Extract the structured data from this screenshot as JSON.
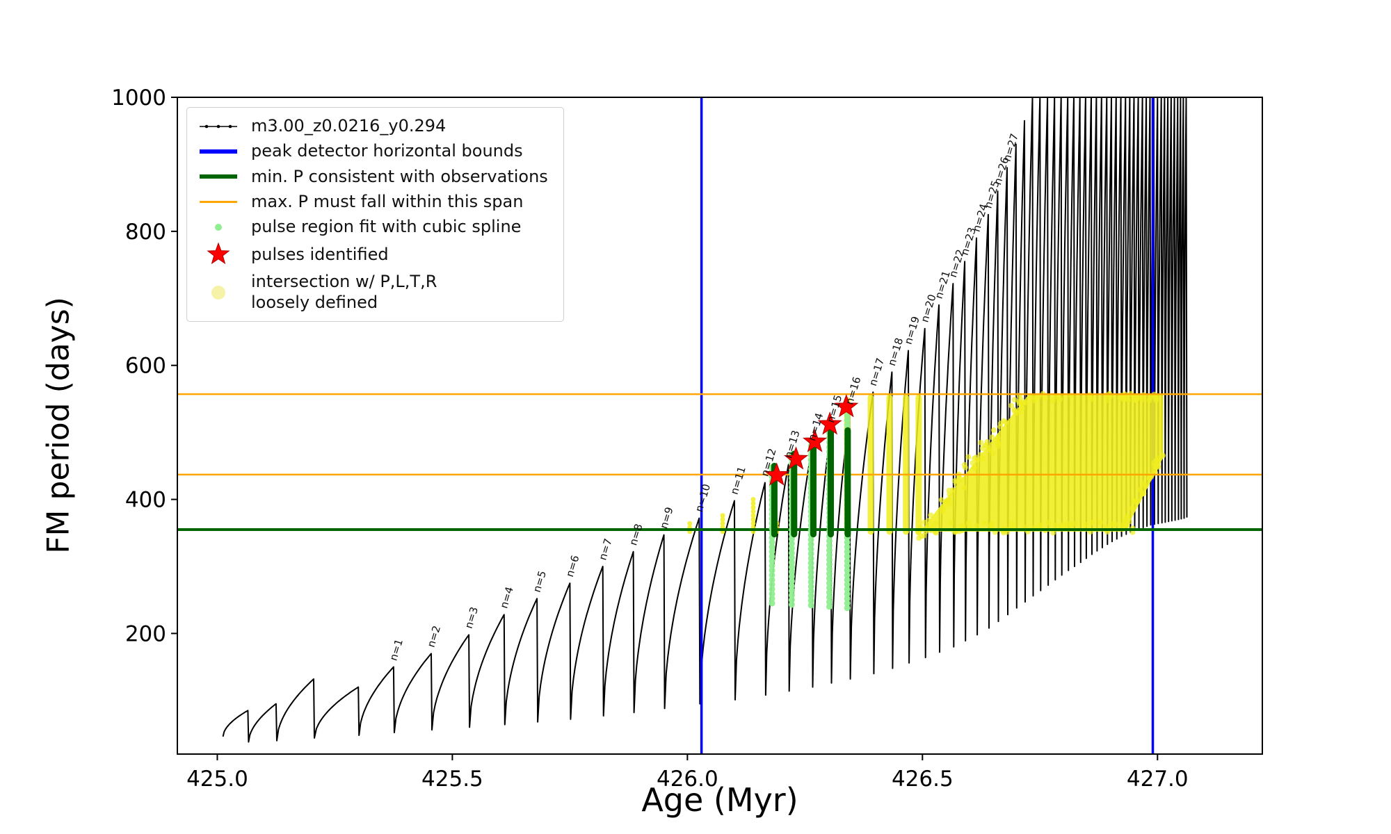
{
  "figure": {
    "background": "#ffffff"
  },
  "chart_data": {
    "type": "line",
    "title": "",
    "xlabel": "Age (Myr)",
    "ylabel": "FM period (days)",
    "xlim": [
      424.915,
      427.223
    ],
    "ylim": [
      20,
      1000
    ],
    "xticks": [
      {
        "v": 425.0,
        "label": "425.0"
      },
      {
        "v": 425.5,
        "label": "425.5"
      },
      {
        "v": 426.0,
        "label": "426.0"
      },
      {
        "v": 426.5,
        "label": "426.5"
      },
      {
        "v": 427.0,
        "label": "427.0"
      }
    ],
    "yticks": [
      {
        "v": 200,
        "label": "200"
      },
      {
        "v": 400,
        "label": "400"
      },
      {
        "v": 600,
        "label": "600"
      },
      {
        "v": 800,
        "label": "800"
      },
      {
        "v": 1000,
        "label": "1000"
      }
    ],
    "series": {
      "label": "m3.00_z0.0216_y0.294",
      "color": "#000000"
    },
    "peak_detector_bounds": {
      "label": "peak detector horizontal bounds",
      "color": "#0000ff",
      "x": [
        426.03,
        426.99
      ]
    },
    "min_p_line": {
      "label": "min. P consistent with observations",
      "color": "#006400",
      "y": 355
    },
    "max_p_span": {
      "label": "max. P must fall within this span",
      "color": "#ffa500",
      "y": [
        437,
        557
      ]
    },
    "pulse_region": {
      "label": "pulse region fit with cubic spline",
      "color": "#90ee90",
      "columns": [
        [
          426.18,
          245,
          448
        ],
        [
          426.222,
          243,
          468
        ],
        [
          426.263,
          242,
          488
        ],
        [
          426.302,
          240,
          510
        ],
        [
          426.34,
          238,
          530
        ]
      ]
    },
    "pulse_bars": {
      "color": "#006400",
      "bars": [
        [
          426.185,
          348,
          450
        ],
        [
          426.227,
          348,
          468
        ],
        [
          426.268,
          348,
          488
        ],
        [
          426.305,
          348,
          500
        ],
        [
          426.341,
          348,
          503
        ]
      ]
    },
    "pulses": {
      "label": "pulses identified",
      "color": "#ff0000",
      "points": [
        [
          426.19,
          436
        ],
        [
          426.231,
          460
        ],
        [
          426.271,
          486
        ],
        [
          426.303,
          512
        ],
        [
          426.338,
          538
        ]
      ]
    },
    "intersection": {
      "label": "intersection w/ P,L,T,R\nloosely defined",
      "color": "#f0ee20",
      "polygon": [
        [
          426.495,
          352
        ],
        [
          426.93,
          352
        ],
        [
          427.012,
          462
        ],
        [
          427.012,
          556
        ],
        [
          426.725,
          556
        ]
      ],
      "strips": [
        [
          426.34,
          352,
          548
        ],
        [
          426.39,
          352,
          552
        ],
        [
          426.43,
          352,
          552
        ],
        [
          426.465,
          352,
          552
        ],
        [
          426.492,
          352,
          552
        ]
      ],
      "flank_dots": [
        [
          426.005,
          352,
          366
        ],
        [
          426.075,
          352,
          380
        ],
        [
          426.14,
          352,
          402
        ],
        [
          426.19,
          352,
          368
        ]
      ]
    },
    "teeth_format": [
      "n_label_or_null",
      "x_peak_Myr",
      "peak_period_days",
      "period_after_drop_days"
    ],
    "teeth": [
      [
        null,
        425.065,
        85,
        38
      ],
      [
        null,
        425.125,
        95,
        40
      ],
      [
        null,
        425.205,
        132,
        44
      ],
      [
        null,
        425.3,
        120,
        48
      ],
      [
        1,
        425.375,
        150,
        52
      ],
      [
        2,
        425.455,
        170,
        56
      ],
      [
        3,
        425.535,
        198,
        60
      ],
      [
        4,
        425.61,
        228,
        64
      ],
      [
        5,
        425.68,
        252,
        68
      ],
      [
        6,
        425.75,
        275,
        72
      ],
      [
        7,
        425.82,
        300,
        77
      ],
      [
        8,
        425.885,
        322,
        82
      ],
      [
        9,
        425.95,
        347,
        88
      ],
      [
        10,
        426.025,
        372,
        95
      ],
      [
        11,
        426.1,
        398,
        101
      ],
      [
        12,
        426.165,
        425,
        108
      ],
      [
        13,
        426.215,
        452,
        114
      ],
      [
        14,
        426.265,
        478,
        120
      ],
      [
        15,
        426.305,
        505,
        126
      ],
      [
        16,
        426.345,
        532,
        132
      ],
      [
        17,
        426.395,
        560,
        140
      ],
      [
        18,
        426.435,
        590,
        148
      ],
      [
        19,
        426.47,
        622,
        156
      ],
      [
        20,
        426.505,
        655,
        164
      ],
      [
        21,
        426.535,
        690,
        172
      ],
      [
        22,
        426.565,
        722,
        180
      ],
      [
        23,
        426.59,
        755,
        189
      ],
      [
        24,
        426.615,
        790,
        198
      ],
      [
        25,
        426.64,
        825,
        208
      ],
      [
        26,
        426.66,
        860,
        218
      ],
      [
        27,
        426.68,
        895,
        228
      ],
      [
        null,
        426.699,
        930,
        238
      ],
      [
        null,
        426.717,
        965,
        247
      ],
      [
        null,
        426.734,
        1000,
        256
      ],
      [
        null,
        426.75,
        1000,
        264
      ],
      [
        null,
        426.766,
        1000,
        272
      ],
      [
        null,
        426.781,
        1000,
        280
      ],
      [
        null,
        426.795,
        1000,
        287
      ],
      [
        null,
        426.809,
        1000,
        294
      ],
      [
        null,
        426.822,
        1000,
        300
      ],
      [
        null,
        426.835,
        1000,
        306
      ],
      [
        null,
        426.847,
        1000,
        312
      ],
      [
        null,
        426.859,
        1000,
        318
      ],
      [
        null,
        426.87,
        1000,
        323
      ],
      [
        null,
        426.881,
        1000,
        328
      ],
      [
        null,
        426.892,
        1000,
        333
      ],
      [
        null,
        426.902,
        1000,
        337
      ],
      [
        null,
        426.912,
        1000,
        341
      ],
      [
        null,
        426.922,
        1000,
        345
      ],
      [
        null,
        426.932,
        1000,
        348
      ],
      [
        null,
        426.941,
        1000,
        351
      ],
      [
        null,
        426.95,
        1000,
        354
      ],
      [
        null,
        426.959,
        1000,
        356
      ],
      [
        null,
        426.968,
        1000,
        358
      ],
      [
        null,
        426.976,
        1000,
        360
      ],
      [
        null,
        426.984,
        1000,
        362
      ],
      [
        null,
        426.992,
        1000,
        363
      ],
      [
        null,
        427.0,
        1000,
        364
      ],
      [
        null,
        427.008,
        1000,
        365
      ],
      [
        null,
        427.015,
        1000,
        366
      ],
      [
        null,
        427.022,
        1000,
        367
      ],
      [
        null,
        427.029,
        1000,
        368
      ],
      [
        null,
        427.036,
        1000,
        369
      ],
      [
        null,
        427.043,
        1000,
        370
      ],
      [
        null,
        427.049,
        1000,
        371
      ],
      [
        null,
        427.055,
        1000,
        372
      ],
      [
        null,
        427.061,
        1000,
        373
      ]
    ]
  },
  "legend": {
    "items": [
      {
        "label": "m3.00_z0.0216_y0.294",
        "type": "line-dot",
        "color": "#000000"
      },
      {
        "label": "peak detector horizontal bounds",
        "type": "thick-line",
        "color": "#0000ff"
      },
      {
        "label": "min. P consistent with observations",
        "type": "thick-line",
        "color": "#006400"
      },
      {
        "label": "max. P must fall within this span",
        "type": "line",
        "color": "#ffa500"
      },
      {
        "label": "pulse region fit with cubic spline",
        "type": "dot",
        "color": "#90ee90"
      },
      {
        "label": "pulses identified",
        "type": "star",
        "color": "#ff0000"
      },
      {
        "label": "intersection w/ P,L,T,R\nloosely defined",
        "type": "big-dot",
        "color": "#f5f2a0"
      }
    ]
  }
}
